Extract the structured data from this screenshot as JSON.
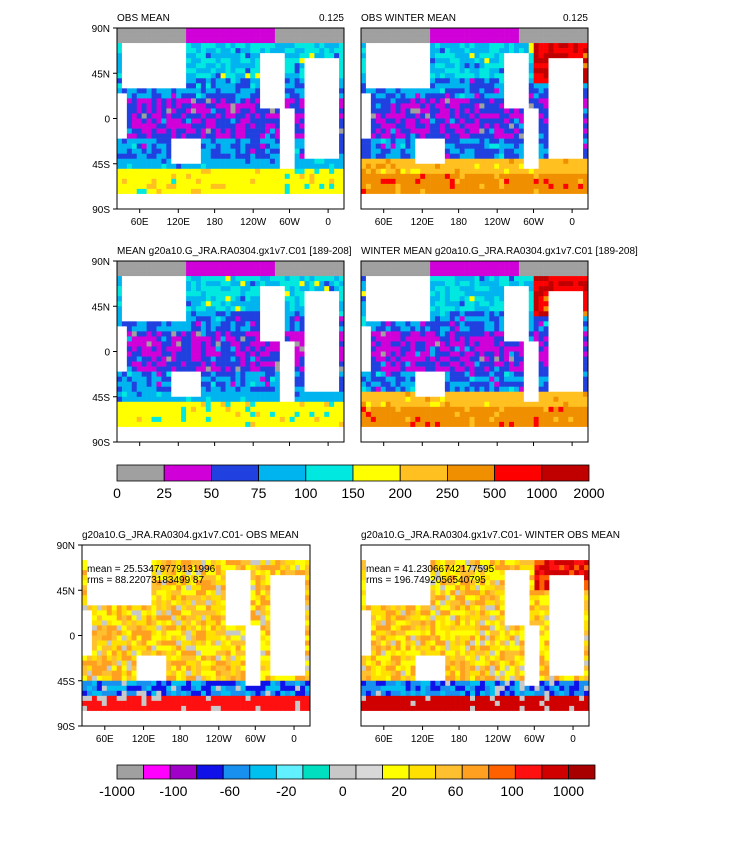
{
  "panels": [
    {
      "title_left": "OBS MEAN",
      "title_right": "0.125",
      "y_ticks": [
        "90N",
        "45N",
        "0",
        "45S",
        "90S"
      ],
      "x_ticks": [
        "60E",
        "120E",
        "180",
        "120W",
        "60W",
        "0"
      ]
    },
    {
      "title_left": "OBS WINTER MEAN",
      "title_right": "0.125",
      "y_ticks": [],
      "x_ticks": [
        "60E",
        "120E",
        "180",
        "120W",
        "60W",
        "0"
      ]
    },
    {
      "title_left": "MEAN g20a10.G_JRA.RA0304.gx1v7.C01 [189-208]",
      "title_right": "",
      "y_ticks": [
        "90N",
        "45N",
        "0",
        "45S",
        "90S"
      ],
      "x_ticks": []
    },
    {
      "title_left": "WINTER MEAN g20a10.G_JRA.RA0304.gx1v7.C01 [189-208]",
      "title_right": "",
      "y_ticks": [],
      "x_ticks": []
    },
    {
      "title_left": "g20a10.G_JRA.RA0304.gx1v7.C01- OBS MEAN",
      "title_right": "",
      "y_ticks": [
        "90N",
        "45N",
        "0",
        "45S",
        "90S"
      ],
      "x_ticks": [
        "60E",
        "120E",
        "180",
        "120W",
        "60W",
        "0"
      ],
      "stats": [
        "mean = 25.53479779131996",
        "rms = 88.22073183499 87"
      ]
    },
    {
      "title_left": "g20a10.G_JRA.RA0304.gx1v7.C01- WINTER OBS MEAN",
      "title_right": "",
      "y_ticks": [],
      "x_ticks": [
        "60E",
        "120E",
        "180",
        "120W",
        "60W",
        "0"
      ],
      "stats": [
        "mean = 41.23066742177595",
        "rms = 196.7492056540795"
      ]
    }
  ],
  "colorbar_abs": {
    "colors": [
      "#a0a0a0",
      "#d000d8",
      "#2040e0",
      "#00b4f0",
      "#00e8e0",
      "#ffff00",
      "#ffc020",
      "#f09000",
      "#ff0000",
      "#c00000"
    ],
    "labels": [
      "0",
      "25",
      "50",
      "75",
      "100",
      "150",
      "200",
      "250",
      "500",
      "1000",
      "2000"
    ]
  },
  "colorbar_diff": {
    "colors": [
      "#a0a0a0",
      "#ff00ff",
      "#a000c8",
      "#1010e8",
      "#1890f0",
      "#00c0f0",
      "#60f0ff",
      "#00e0c0",
      "#c8c8c8",
      "#d8d8d8",
      "#ffff00",
      "#ffe000",
      "#ffc030",
      "#ffa020",
      "#ff6000",
      "#ff1010",
      "#d00000",
      "#a80000"
    ],
    "labels": [
      "-1000",
      "-100",
      "-60",
      "-20",
      "0",
      "20",
      "60",
      "100",
      "1000"
    ]
  }
}
